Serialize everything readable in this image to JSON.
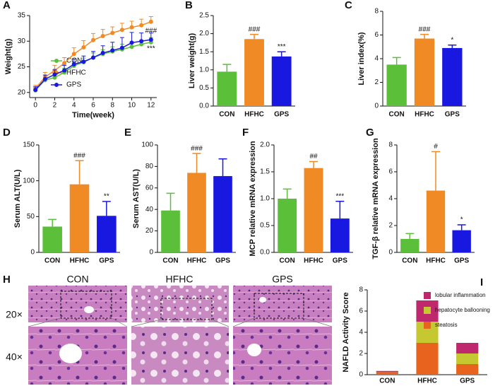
{
  "chart_data": [
    {
      "panel": "A",
      "type": "line",
      "ylabel": "Weight(g)",
      "xlabel": "Time(week)",
      "x": [
        0,
        1,
        2,
        3,
        4,
        5,
        6,
        7,
        8,
        9,
        10,
        11,
        12
      ],
      "xlim": [
        -0.6,
        12.6
      ],
      "xticks": [
        0,
        2,
        4,
        6,
        8,
        10,
        12
      ],
      "ylim": [
        19,
        35
      ],
      "yticks": [
        20,
        25,
        30,
        35
      ],
      "series": [
        {
          "name": "CON",
          "color": "#5cbf3a",
          "values": [
            20.4,
            22.4,
            22.9,
            23.9,
            25.2,
            25.9,
            26.8,
            27.5,
            28.0,
            28.4,
            28.9,
            29.4,
            29.8
          ],
          "errors": [
            0.5,
            0.7,
            0.6,
            0.8,
            0.7,
            0.8,
            0.9,
            0.8,
            0.9,
            1.0,
            0.9,
            0.8,
            0.9
          ]
        },
        {
          "name": "HFHC",
          "color": "#f08a24",
          "values": [
            20.8,
            23.0,
            24.3,
            25.7,
            27.5,
            28.8,
            30.2,
            31.0,
            31.6,
            32.2,
            32.7,
            33.1,
            33.8
          ],
          "errors": [
            0.6,
            0.9,
            1.0,
            1.1,
            1.2,
            1.3,
            1.3,
            1.3,
            1.2,
            1.3,
            1.2,
            1.2,
            1.0
          ],
          "significance": "###"
        },
        {
          "name": "GPS",
          "color": "#1818e0",
          "values": [
            20.5,
            22.6,
            23.5,
            24.3,
            25.5,
            26.0,
            26.8,
            27.7,
            28.2,
            28.7,
            29.7,
            30.0,
            30.3
          ],
          "errors": [
            0.6,
            0.8,
            0.9,
            1.0,
            1.0,
            1.1,
            1.2,
            1.4,
            1.6,
            2.0,
            2.0,
            1.6,
            1.3
          ],
          "significance": "***"
        }
      ]
    },
    {
      "panel": "B",
      "type": "bar",
      "ylabel": "Liver weight(g)",
      "categories": [
        "CON",
        "HFHC",
        "GPS"
      ],
      "colors": [
        "#5cbf3a",
        "#f08a24",
        "#1818e0"
      ],
      "values": [
        0.95,
        1.85,
        1.37
      ],
      "errors": [
        0.2,
        0.13,
        0.13
      ],
      "significance": [
        null,
        "###",
        "***"
      ],
      "ylim": [
        0,
        2.5
      ],
      "yticks": [
        {
          "value": 0,
          "label": "0.0"
        },
        0.5,
        {
          "value": 1,
          "label": "1.0"
        },
        1.5,
        {
          "value": 2,
          "label": "2.0"
        },
        2.5
      ]
    },
    {
      "panel": "C",
      "type": "bar",
      "ylabel": "Liver index(%)",
      "categories": [
        "CON",
        "HFHC",
        "GPS"
      ],
      "colors": [
        "#5cbf3a",
        "#f08a24",
        "#1818e0"
      ],
      "values": [
        3.5,
        5.7,
        4.9
      ],
      "errors": [
        0.6,
        0.35,
        0.25
      ],
      "significance": [
        null,
        "###",
        "*"
      ],
      "ylim": [
        0,
        8
      ],
      "yticks": [
        0,
        2,
        4,
        6,
        8
      ]
    },
    {
      "panel": "D",
      "type": "bar",
      "ylabel": "Serum ALT(U/L)",
      "categories": [
        "CON",
        "HFHC",
        "GPS"
      ],
      "colors": [
        "#5cbf3a",
        "#f08a24",
        "#1818e0"
      ],
      "values": [
        36,
        95,
        51
      ],
      "errors": [
        10,
        33,
        20
      ],
      "significance": [
        null,
        "###",
        "**"
      ],
      "ylim": [
        0,
        150
      ],
      "yticks": [
        0,
        50,
        100,
        150
      ]
    },
    {
      "panel": "E",
      "type": "bar",
      "ylabel": "Serum AST(U/L)",
      "categories": [
        "CON",
        "HFHC",
        "GPS"
      ],
      "colors": [
        "#5cbf3a",
        "#f08a24",
        "#1818e0"
      ],
      "values": [
        39,
        74,
        71
      ],
      "errors": [
        16,
        18,
        16
      ],
      "significance": [
        null,
        "###",
        null
      ],
      "ylim": [
        0,
        100
      ],
      "yticks": [
        0,
        20,
        40,
        60,
        80,
        100
      ]
    },
    {
      "panel": "F",
      "type": "bar",
      "ylabel": "MCP relative mRNA expression",
      "categories": [
        "CON",
        "HFHC",
        "GPS"
      ],
      "colors": [
        "#5cbf3a",
        "#f08a24",
        "#1818e0"
      ],
      "values": [
        1.0,
        1.57,
        0.63
      ],
      "errors": [
        0.18,
        0.12,
        0.32
      ],
      "significance": [
        null,
        "##",
        "***"
      ],
      "ylim": [
        0,
        2
      ],
      "yticks": [
        {
          "value": 0,
          "label": "0.0"
        },
        0.5,
        {
          "value": 1,
          "label": "1.0"
        },
        1.5,
        {
          "value": 2,
          "label": "2.0"
        }
      ]
    },
    {
      "panel": "G",
      "type": "bar",
      "ylabel": "TGF-β relative mRNA expression",
      "categories": [
        "CON",
        "HFHC",
        "GPS"
      ],
      "colors": [
        "#5cbf3a",
        "#f08a24",
        "#1818e0"
      ],
      "values": [
        1.0,
        4.6,
        1.65
      ],
      "errors": [
        0.4,
        2.9,
        0.4
      ],
      "significance": [
        null,
        "#",
        "*"
      ],
      "ylim": [
        0,
        8
      ],
      "yticks": [
        0,
        2,
        4,
        6,
        8
      ]
    },
    {
      "panel": "I",
      "type": "stacked_bar",
      "ylabel": "NAFLD Activity Score",
      "categories": [
        "CON",
        "HFHC",
        "GPS"
      ],
      "ylim": [
        0,
        8
      ],
      "yticks": [
        0,
        2,
        4,
        6,
        8
      ],
      "series": [
        {
          "name": "steatosis",
          "color": "#e8641e",
          "values": [
            0.25,
            3,
            1
          ]
        },
        {
          "name": "hepatocyte ballooning",
          "color": "#c6c832",
          "values": [
            0,
            2,
            1
          ]
        },
        {
          "name": "lobular inflammation",
          "color": "#c0286e",
          "values": [
            0.1,
            2,
            1
          ]
        }
      ]
    }
  ],
  "histology": {
    "panel": "H",
    "columns": [
      "CON",
      "HFHC",
      "GPS"
    ],
    "rows": [
      "20×",
      "40×"
    ]
  }
}
